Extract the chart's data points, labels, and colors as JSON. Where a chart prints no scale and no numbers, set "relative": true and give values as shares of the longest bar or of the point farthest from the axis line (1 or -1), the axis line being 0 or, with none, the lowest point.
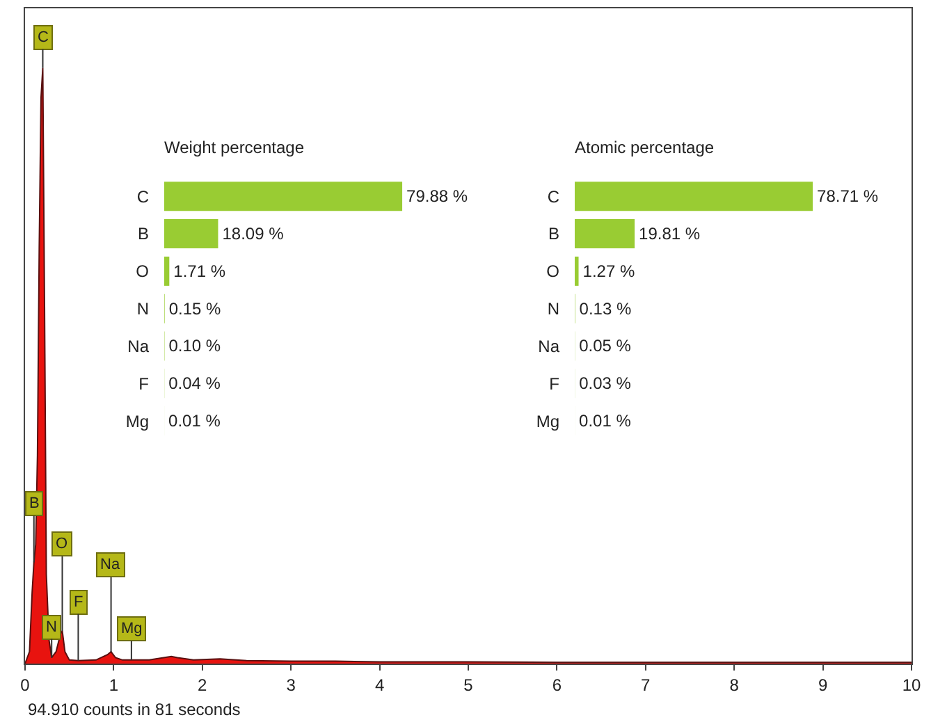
{
  "chart_data": [
    {
      "type": "area",
      "relative": true,
      "color": "#e8130f",
      "x": [
        0,
        0.05,
        0.08,
        0.1,
        0.12,
        0.14,
        0.16,
        0.18,
        0.2,
        0.22,
        0.24,
        0.27,
        0.3,
        0.35,
        0.4,
        0.42,
        0.45,
        0.5,
        0.6,
        0.8,
        0.93,
        0.97,
        1.02,
        1.1,
        1.4,
        1.65,
        1.72,
        1.9,
        2.2,
        2.5,
        3,
        3.5,
        4,
        5,
        6,
        7,
        8,
        9,
        10
      ],
      "values": [
        0,
        0.02,
        0.12,
        0.17,
        0.2,
        0.35,
        0.7,
        0.95,
        1,
        0.6,
        0.15,
        0.04,
        0.01,
        0.02,
        0.05,
        0.055,
        0.02,
        0.006,
        0.005,
        0.006,
        0.015,
        0.02,
        0.01,
        0.006,
        0.006,
        0.012,
        0.01,
        0.006,
        0.008,
        0.005,
        0.004,
        0.004,
        0.003,
        0.003,
        0.002,
        0.002,
        0.002,
        0.002,
        0.002
      ],
      "xlim": [
        0,
        10
      ],
      "xticks": [
        0,
        1,
        2,
        3,
        4,
        5,
        6,
        7,
        8,
        9,
        10
      ],
      "grid": false,
      "annotations": [
        {
          "text": "C",
          "x": 0.2,
          "y": 1
        },
        {
          "text": "B",
          "x": 0.1,
          "y": 0.17
        },
        {
          "text": "O",
          "x": 0.42,
          "y": 0.055
        },
        {
          "text": "N",
          "x": 0.3,
          "y": 0.01
        },
        {
          "text": "F",
          "x": 0.6,
          "y": 0.005
        },
        {
          "text": "Na",
          "x": 0.97,
          "y": 0.02
        },
        {
          "text": "Mg",
          "x": 1.2,
          "y": 0.006
        },
        "94.910 counts in 81 seconds"
      ]
    },
    {
      "type": "bar",
      "orientation": "horizontal",
      "title": "Weight percentage",
      "categories": [
        "C",
        "B",
        "O",
        "N",
        "Na",
        "F",
        "Mg"
      ],
      "values": [
        79.88,
        18.09,
        1.71,
        0.15,
        0.1,
        0.04,
        0.01
      ],
      "color": "#99cc33",
      "value_labels": [
        "79.88 %",
        "18.09 %",
        "1.71 %",
        "0.15 %",
        "0.10 %",
        "0.04 %",
        "0.01 %"
      ],
      "tick_labels": "y",
      "grid": false
    },
    {
      "type": "bar",
      "orientation": "horizontal",
      "title": "Atomic percentage",
      "categories": [
        "C",
        "B",
        "O",
        "N",
        "Na",
        "F",
        "Mg"
      ],
      "values": [
        78.71,
        19.81,
        1.27,
        0.13,
        0.05,
        0.03,
        0.01
      ],
      "color": "#99cc33",
      "value_labels": [
        "78.71 %",
        "19.81 %",
        "1.27 %",
        "0.13 %",
        "0.05 %",
        "0.03 %",
        "0.01 %"
      ],
      "tick_labels": "y",
      "grid": false
    }
  ]
}
